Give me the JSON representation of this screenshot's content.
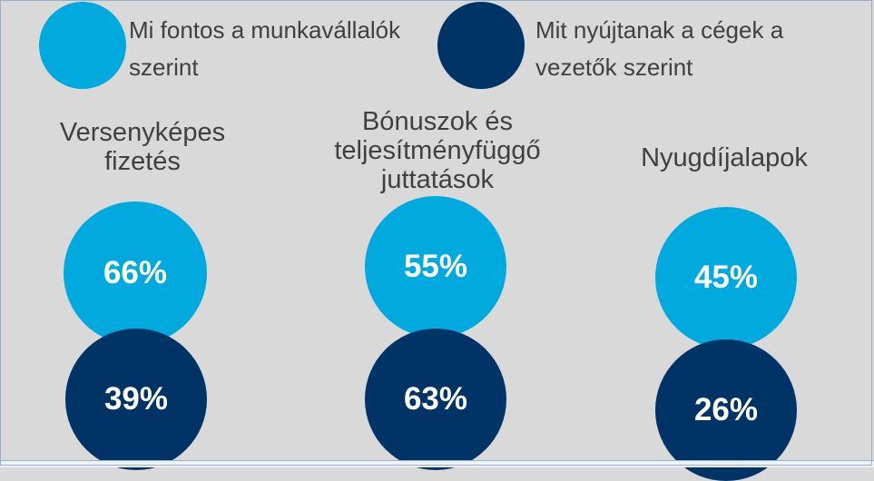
{
  "legend": [
    {
      "line1": "Mi fontos a munkavállalók",
      "line2": "szerint",
      "color": "#00a9de"
    },
    {
      "line1": "Mit nyújtanak a cégek a",
      "line2": "vezetők szerint",
      "color": "#003366"
    }
  ],
  "chart_data": {
    "type": "bubble-comparison",
    "categories": [
      [
        "Versenyképes",
        "fizetés"
      ],
      [
        "Bónuszok és",
        "teljesítményfüggő",
        "juttatások"
      ],
      [
        "Nyugdíjalapok"
      ]
    ],
    "series": [
      {
        "name": "Mi fontos a munkavállalók szerint",
        "color": "#00a9de",
        "values": [
          66,
          55,
          45
        ],
        "labels": [
          "66%",
          "55%",
          "45%"
        ]
      },
      {
        "name": "Mit nyújtanak a cégek a vezetők szerint",
        "color": "#003366",
        "values": [
          39,
          63,
          26
        ],
        "labels": [
          "39%",
          "63%",
          "26%"
        ]
      }
    ]
  }
}
